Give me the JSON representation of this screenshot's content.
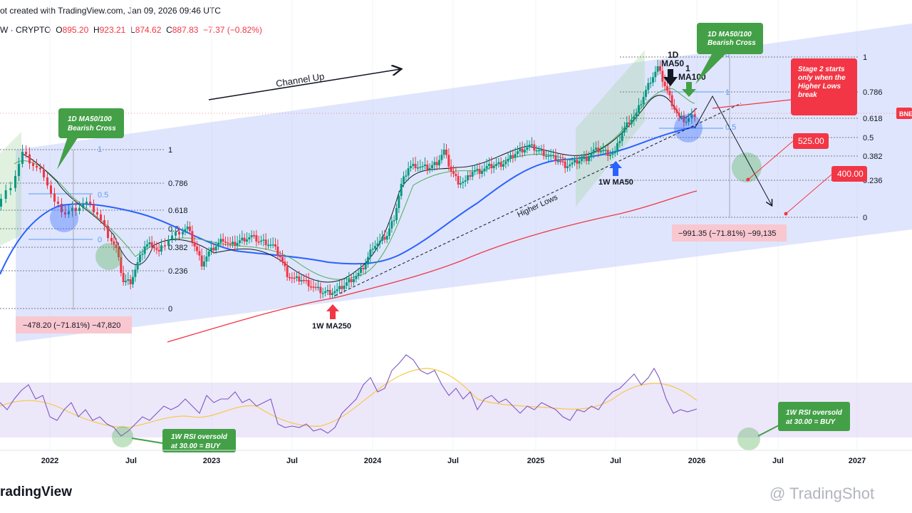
{
  "header": {
    "snapshot": "ot created with TradingView.com, Jan 09, 2026 09:46 UTC",
    "symbol": "W · CRYPTO",
    "o_label": "O",
    "o_val": "895.20",
    "h_label": "H",
    "h_val": "923.21",
    "l_label": "L",
    "l_val": "874.62",
    "c_label": "C",
    "c_val": "887.83",
    "change": "−7.37 (−0.82%)"
  },
  "footer": {
    "logo": "radingView",
    "watermark": "@ TradingShot"
  },
  "colors": {
    "channel": "#c5cffa",
    "candle_up": "#089981",
    "candle_down": "#f23645",
    "ma50": "#2962ff",
    "ma250": "#f23645",
    "rsi": "#7e57c2",
    "rsi_ma": "#f7c948",
    "callout_green": "#43a047",
    "callout_red": "#f23645",
    "fib": "#5b9cf6"
  },
  "chart_data": {
    "type": "candlestick",
    "time_axis": {
      "labels": [
        "2022",
        "Jul",
        "2023",
        "Jul",
        "2024",
        "Jul",
        "2025",
        "Jul",
        "2026",
        "Jul",
        "2027"
      ]
    },
    "price_labels": {
      "current_tag": "BNE",
      "target1": "525.00",
      "target2": "400.00"
    },
    "fib_left": {
      "levels": [
        "1",
        "0.786",
        "0.618",
        "0.5",
        "0.382",
        "0.236",
        "0"
      ],
      "small": [
        "1",
        "0.5",
        "0"
      ],
      "measure": "−478.20 (−71.81%) −47,820"
    },
    "fib_right": {
      "levels": [
        "1",
        "0.786",
        "0.618",
        "0.5",
        "0.382",
        "0.236",
        "0"
      ],
      "small": [
        "1",
        "0.5",
        "0"
      ],
      "measure": "−991.35 (−71.81%) −99,135"
    },
    "annotations": {
      "channel": "Channel Up",
      "higher_lows": "Higher Lows",
      "ma250": "1W MA250",
      "ma50": "1W MA50",
      "ma_label_1d": "1D",
      "ma_label_ma50": "MA50",
      "ma_label_1": "1",
      "ma_label_ma100": "MA100",
      "callout_left_1": "1D MA50/100",
      "callout_left_2": "Bearish Cross",
      "callout_right_1": "1D MA50/100",
      "callout_right_2": "Bearish Cross",
      "stage2_1": "Stage 2 starts",
      "stage2_2": "only when the",
      "stage2_3": "Higher Lows",
      "stage2_4": "break",
      "rsi_left_1": "1W RSI oversold",
      "rsi_left_2": "at 30.00 = BUY",
      "rsi_right_1": "1W RSI oversold",
      "rsi_right_2": "at 30.00 = BUY"
    }
  }
}
